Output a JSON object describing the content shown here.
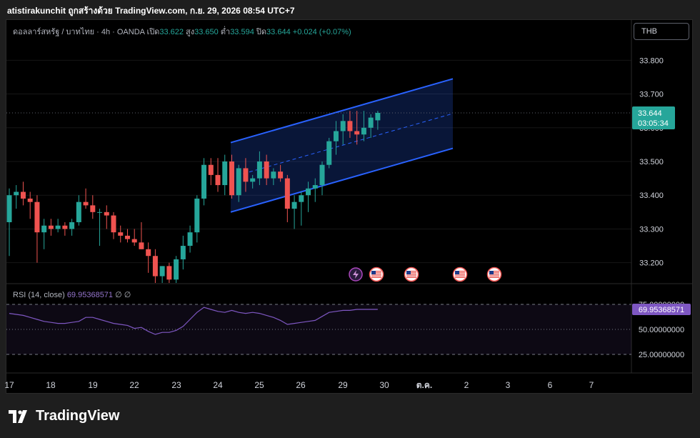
{
  "header": {
    "text": "atistirakunchit ถูกสร้างด้วย TradingView.com, ก.ย. 29, 2026 08:54 UTC+7"
  },
  "legend": {
    "symbol": "ดอลลาร์สหรัฐ / บาทไทย · 4h · OANDA",
    "open_label": "เปิด",
    "open": "33.622",
    "high_label": "สูง",
    "high": "33.650",
    "low_label": "ต่ำ",
    "low": "33.594",
    "close_label": "ปิด",
    "close": "33.644",
    "change": "+0.024 (+0.07%)"
  },
  "currency_button": "THB",
  "price_label": {
    "value": "33.644",
    "countdown": "03:05:34"
  },
  "rsi": {
    "label": "RSI (14, close)",
    "value": "69.95368571",
    "extra1": "∅",
    "extra2": "∅",
    "levels": [
      "75.00000000",
      "50.00000000",
      "25.00000000"
    ]
  },
  "brand": {
    "name": "TradingView"
  },
  "colors": {
    "up": "#26a69a",
    "down": "#ef5350",
    "channel": "#2962ff",
    "rsi": "#7e57c2",
    "bg": "#000000"
  },
  "icons": [
    "lightning-icon",
    "us-flag-icon",
    "us-flag-icon",
    "us-flag-icon",
    "us-flag-icon"
  ],
  "chart_data": {
    "type": "candlestick",
    "x_ticks": [
      "17",
      "18",
      "19",
      "22",
      "23",
      "24",
      "25",
      "26",
      "29",
      "30",
      "ต.ค.",
      "2",
      "3",
      "6",
      "7"
    ],
    "y_ticks": [
      "33.800",
      "33.700",
      "33.600",
      "33.500",
      "33.400",
      "33.300",
      "33.200"
    ],
    "ylim": [
      33.14,
      33.86
    ],
    "candles": [
      {
        "o": 33.32,
        "h": 33.42,
        "l": 33.22,
        "c": 33.4
      },
      {
        "o": 33.4,
        "h": 33.43,
        "l": 33.36,
        "c": 33.41
      },
      {
        "o": 33.41,
        "h": 33.44,
        "l": 33.37,
        "c": 33.39
      },
      {
        "o": 33.39,
        "h": 33.41,
        "l": 33.33,
        "c": 33.38
      },
      {
        "o": 33.38,
        "h": 33.4,
        "l": 33.2,
        "c": 33.29
      },
      {
        "o": 33.29,
        "h": 33.33,
        "l": 33.24,
        "c": 33.31
      },
      {
        "o": 33.31,
        "h": 33.33,
        "l": 33.28,
        "c": 33.3
      },
      {
        "o": 33.3,
        "h": 33.33,
        "l": 33.29,
        "c": 33.31
      },
      {
        "o": 33.31,
        "h": 33.32,
        "l": 33.28,
        "c": 33.3
      },
      {
        "o": 33.3,
        "h": 33.33,
        "l": 33.28,
        "c": 33.32
      },
      {
        "o": 33.32,
        "h": 33.4,
        "l": 33.31,
        "c": 33.38
      },
      {
        "o": 33.38,
        "h": 33.42,
        "l": 33.36,
        "c": 33.37
      },
      {
        "o": 33.37,
        "h": 33.4,
        "l": 33.33,
        "c": 33.35
      },
      {
        "o": 33.35,
        "h": 33.36,
        "l": 33.25,
        "c": 33.35
      },
      {
        "o": 33.35,
        "h": 33.37,
        "l": 33.3,
        "c": 33.34
      },
      {
        "o": 33.34,
        "h": 33.35,
        "l": 33.27,
        "c": 33.29
      },
      {
        "o": 33.29,
        "h": 33.31,
        "l": 33.26,
        "c": 33.28
      },
      {
        "o": 33.28,
        "h": 33.3,
        "l": 33.26,
        "c": 33.27
      },
      {
        "o": 33.27,
        "h": 33.3,
        "l": 33.25,
        "c": 33.26
      },
      {
        "o": 33.26,
        "h": 33.32,
        "l": 33.24,
        "c": 33.24
      },
      {
        "o": 33.24,
        "h": 33.26,
        "l": 33.17,
        "c": 33.22
      },
      {
        "o": 33.22,
        "h": 33.24,
        "l": 33.14,
        "c": 33.16
      },
      {
        "o": 33.16,
        "h": 33.19,
        "l": 33.14,
        "c": 33.19
      },
      {
        "o": 33.19,
        "h": 33.2,
        "l": 33.14,
        "c": 33.15
      },
      {
        "o": 33.15,
        "h": 33.22,
        "l": 33.14,
        "c": 33.21
      },
      {
        "o": 33.21,
        "h": 33.28,
        "l": 33.18,
        "c": 33.25
      },
      {
        "o": 33.25,
        "h": 33.31,
        "l": 33.23,
        "c": 33.29
      },
      {
        "o": 33.29,
        "h": 33.4,
        "l": 33.26,
        "c": 33.39
      },
      {
        "o": 33.39,
        "h": 33.51,
        "l": 33.37,
        "c": 33.49
      },
      {
        "o": 33.49,
        "h": 33.51,
        "l": 33.43,
        "c": 33.46
      },
      {
        "o": 33.46,
        "h": 33.51,
        "l": 33.41,
        "c": 33.43
      },
      {
        "o": 33.43,
        "h": 33.52,
        "l": 33.4,
        "c": 33.5
      },
      {
        "o": 33.5,
        "h": 33.52,
        "l": 33.39,
        "c": 33.4
      },
      {
        "o": 33.4,
        "h": 33.49,
        "l": 33.38,
        "c": 33.48
      },
      {
        "o": 33.48,
        "h": 33.51,
        "l": 33.41,
        "c": 33.44
      },
      {
        "o": 33.44,
        "h": 33.46,
        "l": 33.42,
        "c": 33.45
      },
      {
        "o": 33.45,
        "h": 33.53,
        "l": 33.43,
        "c": 33.5
      },
      {
        "o": 33.5,
        "h": 33.52,
        "l": 33.43,
        "c": 33.45
      },
      {
        "o": 33.45,
        "h": 33.48,
        "l": 33.43,
        "c": 33.47
      },
      {
        "o": 33.47,
        "h": 33.49,
        "l": 33.44,
        "c": 33.45
      },
      {
        "o": 33.45,
        "h": 33.46,
        "l": 33.32,
        "c": 33.36
      },
      {
        "o": 33.36,
        "h": 33.4,
        "l": 33.3,
        "c": 33.38
      },
      {
        "o": 33.38,
        "h": 33.41,
        "l": 33.31,
        "c": 33.4
      },
      {
        "o": 33.4,
        "h": 33.44,
        "l": 33.35,
        "c": 33.42
      },
      {
        "o": 33.42,
        "h": 33.45,
        "l": 33.38,
        "c": 33.43
      },
      {
        "o": 33.43,
        "h": 33.5,
        "l": 33.4,
        "c": 33.49
      },
      {
        "o": 33.49,
        "h": 33.57,
        "l": 33.48,
        "c": 33.56
      },
      {
        "o": 33.56,
        "h": 33.62,
        "l": 33.52,
        "c": 33.59
      },
      {
        "o": 33.59,
        "h": 33.64,
        "l": 33.55,
        "c": 33.62
      },
      {
        "o": 33.62,
        "h": 33.65,
        "l": 33.57,
        "c": 33.59
      },
      {
        "o": 33.59,
        "h": 33.65,
        "l": 33.55,
        "c": 33.58
      },
      {
        "o": 33.58,
        "h": 33.65,
        "l": 33.56,
        "c": 33.6
      },
      {
        "o": 33.6,
        "h": 33.64,
        "l": 33.57,
        "c": 33.63
      },
      {
        "o": 33.622,
        "h": 33.65,
        "l": 33.594,
        "c": 33.644
      }
    ],
    "channel": {
      "start_x": "24",
      "end_x": "ต.ค. (ahead)",
      "upper": [
        33.556,
        33.745
      ],
      "mid": [
        33.453,
        33.642
      ],
      "lower": [
        33.35,
        33.539
      ]
    },
    "rsi_series": [
      66,
      65,
      64,
      62,
      60,
      58,
      57,
      56,
      56,
      57,
      58,
      62,
      62,
      60,
      58,
      56,
      55,
      54,
      51,
      52,
      48,
      45,
      47,
      47,
      49,
      53,
      60,
      67,
      72,
      70,
      68,
      67,
      69,
      67,
      66,
      67,
      66,
      64,
      62,
      59,
      55,
      56,
      57,
      58,
      59,
      63,
      67,
      68,
      69,
      69,
      70,
      70,
      70,
      70
    ],
    "rsi_levels": [
      75,
      50,
      25
    ]
  }
}
